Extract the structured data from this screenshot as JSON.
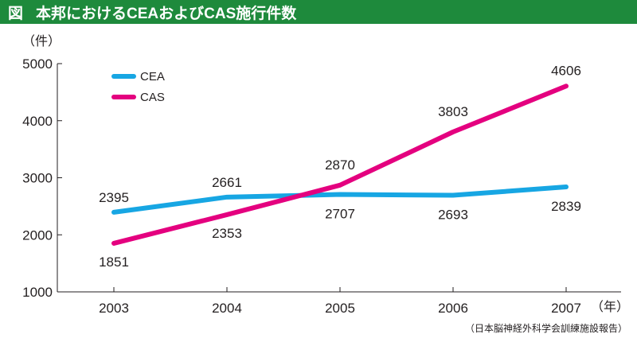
{
  "header": {
    "label": "図",
    "title": "本邦におけるCEAおよびCAS施行件数"
  },
  "source": "（日本脳神経外科学会訓練施設報告）",
  "chart_data": {
    "type": "line",
    "title": "本邦におけるCEAおよびCAS施行件数",
    "xlabel": "（年）",
    "ylabel": "（件）",
    "x": [
      "2003",
      "2004",
      "2005",
      "2006",
      "2007"
    ],
    "ylim": [
      1000,
      5000
    ],
    "yticks": [
      1000,
      2000,
      3000,
      4000,
      5000
    ],
    "grid": false,
    "legend": "top-left",
    "series": [
      {
        "name": "CEA",
        "color": "#17a6e3",
        "values": [
          2395,
          2661,
          2707,
          2693,
          2839
        ]
      },
      {
        "name": "CAS",
        "color": "#e4007f",
        "values": [
          1851,
          2353,
          2870,
          3803,
          4606
        ]
      }
    ]
  }
}
